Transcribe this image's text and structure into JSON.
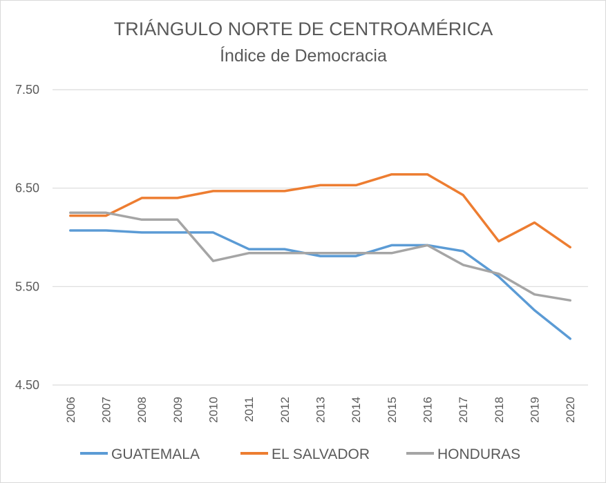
{
  "chart_data": {
    "type": "line",
    "title": "TRIÁNGULO NORTE DE CENTROAMÉRICA",
    "subtitle": "Índice de Democracia",
    "xlabel": "",
    "ylabel": "",
    "ylim": [
      4.5,
      7.5
    ],
    "yticks": [
      "7.50",
      "6.50",
      "5.50",
      "4.50"
    ],
    "ytick_values": [
      7.5,
      6.5,
      5.5,
      4.5
    ],
    "categories": [
      "2006",
      "2007",
      "2008",
      "2009",
      "2010",
      "2011",
      "2012",
      "2013",
      "2014",
      "2015",
      "2016",
      "2017",
      "2018",
      "2019",
      "2020"
    ],
    "series": [
      {
        "name": "GUATEMALA",
        "color": "#5b9bd5",
        "values": [
          6.07,
          6.07,
          6.05,
          6.05,
          6.05,
          5.88,
          5.88,
          5.81,
          5.81,
          5.92,
          5.92,
          5.86,
          5.6,
          5.26,
          4.97
        ]
      },
      {
        "name": "EL SALVADOR",
        "color": "#ed7d31",
        "values": [
          6.22,
          6.22,
          6.4,
          6.4,
          6.47,
          6.47,
          6.47,
          6.53,
          6.53,
          6.64,
          6.64,
          6.43,
          5.96,
          6.15,
          5.9
        ]
      },
      {
        "name": "HONDURAS",
        "color": "#a5a5a5",
        "values": [
          6.25,
          6.25,
          6.18,
          6.18,
          5.76,
          5.84,
          5.84,
          5.84,
          5.84,
          5.84,
          5.92,
          5.72,
          5.63,
          5.42,
          5.36
        ]
      }
    ],
    "grid": true,
    "legend": "bottom"
  }
}
